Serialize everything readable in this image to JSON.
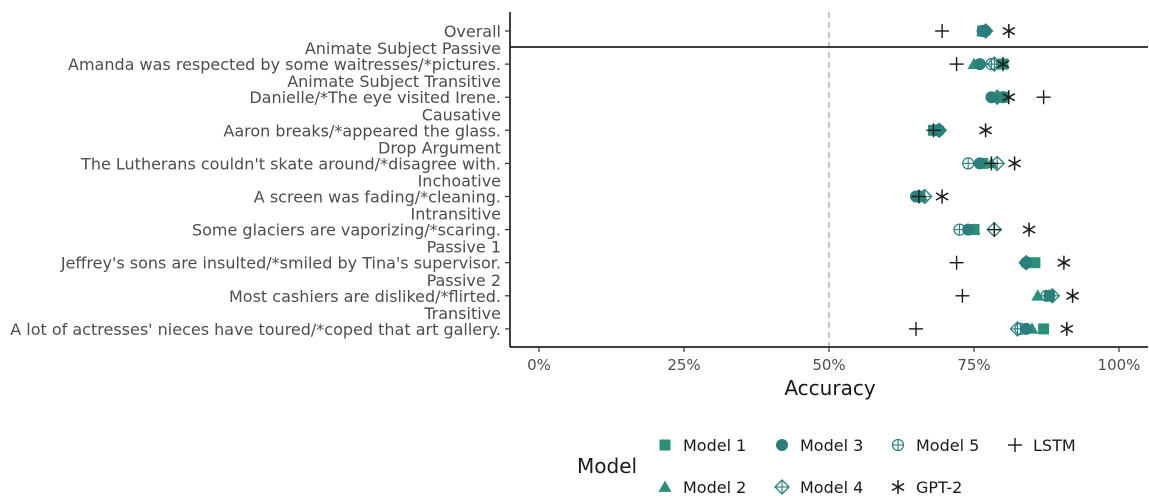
{
  "chart_data": {
    "type": "scatter",
    "xlabel": "Accuracy",
    "xlim": [
      -0.05,
      1.05
    ],
    "xticks": [
      0,
      0.25,
      0.5,
      0.75,
      1.0
    ],
    "xtick_labels": [
      "0%",
      "25%",
      "50%",
      "75%",
      "100%"
    ],
    "reference_line_x": 0.5,
    "grid": false,
    "legend_title": "Model",
    "legend_position": "bottom",
    "categories": [
      {
        "name": "Overall",
        "example": ""
      },
      {
        "name": "Animate Subject Passive",
        "example": "Amanda was respected by some waitresses/*pictures."
      },
      {
        "name": "Animate Subject Transitive",
        "example": "Danielle/*The eye visited Irene."
      },
      {
        "name": "Causative",
        "example": "Aaron breaks/*appeared the glass."
      },
      {
        "name": "Drop Argument",
        "example": "The Lutherans couldn't skate around/*disagree with."
      },
      {
        "name": "Inchoative",
        "example": "A screen was fading/*cleaning."
      },
      {
        "name": "Intransitive",
        "example": "Some glaciers are vaporizing/*scaring."
      },
      {
        "name": "Passive 1",
        "example": "Jeffrey's sons are insulted/*smiled by Tina's supervisor."
      },
      {
        "name": "Passive 2",
        "example": "Most cashiers are disliked/*flirted."
      },
      {
        "name": "Transitive",
        "example": "A lot of actresses' nieces have toured/*coped that art gallery."
      }
    ],
    "series": [
      {
        "name": "Model 1",
        "shape": "square",
        "color": "#2a9179",
        "values": [
          0.765,
          0.8,
          0.8,
          0.68,
          0.765,
          0.655,
          0.75,
          0.855,
          0.88,
          0.87
        ]
      },
      {
        "name": "Model 2",
        "shape": "triangle",
        "color": "#2a9179",
        "values": [
          0.765,
          0.75,
          0.79,
          0.685,
          0.78,
          0.66,
          0.75,
          0.845,
          0.86,
          0.85
        ]
      },
      {
        "name": "Model 3",
        "shape": "circle",
        "color": "#2a7f7c",
        "values": [
          0.77,
          0.76,
          0.78,
          0.69,
          0.76,
          0.65,
          0.74,
          0.84,
          0.88,
          0.84
        ]
      },
      {
        "name": "Model 4",
        "shape": "diamond",
        "color": "#2a7f7c",
        "values": [
          0.77,
          0.785,
          0.79,
          0.69,
          0.79,
          0.665,
          0.785,
          0.84,
          0.885,
          0.825
        ]
      },
      {
        "name": "Model 5",
        "shape": "circleplus",
        "color": "#2a7f7c",
        "values": [
          0.765,
          0.78,
          0.8,
          0.685,
          0.74,
          0.655,
          0.725,
          0.84,
          0.875,
          0.83
        ]
      },
      {
        "name": "GPT-2",
        "shape": "asterisk",
        "color": "#1a1a1a",
        "values": [
          0.81,
          0.8,
          0.81,
          0.77,
          0.82,
          0.695,
          0.845,
          0.905,
          0.92,
          0.91
        ]
      },
      {
        "name": "LSTM",
        "shape": "plus",
        "color": "#1a1a1a",
        "values": [
          0.695,
          0.72,
          0.87,
          0.68,
          0.78,
          0.655,
          0.785,
          0.72,
          0.73,
          0.65
        ]
      }
    ],
    "legend_order": [
      "Model 1",
      "Model 3",
      "Model 5",
      "LSTM",
      "Model 2",
      "Model 4",
      "GPT-2"
    ]
  }
}
